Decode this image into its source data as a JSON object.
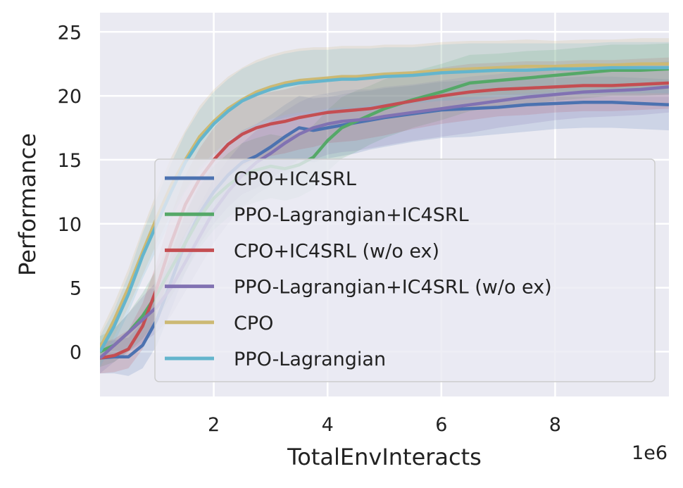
{
  "chart_data": {
    "type": "line",
    "title": "",
    "xlabel": "TotalEnvInteracts",
    "ylabel": "Performance",
    "x_scale_label": "1e6",
    "xlim": [
      0.0,
      10.0
    ],
    "ylim": [
      -3.5,
      26.5
    ],
    "xticks": [
      2,
      4,
      6,
      8
    ],
    "xtick_labels": [
      "2",
      "4",
      "6",
      "8"
    ],
    "yticks": [
      0,
      5,
      10,
      15,
      20,
      25
    ],
    "ytick_labels": [
      "0",
      "5",
      "10",
      "15",
      "20",
      "25"
    ],
    "grid": true,
    "legend_position": "center-right",
    "x": [
      0.0,
      0.25,
      0.5,
      0.75,
      1.0,
      1.25,
      1.5,
      1.75,
      2.0,
      2.25,
      2.5,
      2.75,
      3.0,
      3.25,
      3.5,
      3.75,
      4.0,
      4.25,
      4.5,
      4.75,
      5.0,
      5.5,
      6.0,
      6.5,
      7.0,
      7.5,
      8.0,
      8.5,
      9.0,
      9.5,
      10.0
    ],
    "series": [
      {
        "name": "CPO+IC4SRL",
        "color": "#4c72b0",
        "values": [
          -0.5,
          -0.4,
          -0.4,
          0.5,
          2.5,
          5.5,
          8.5,
          10.8,
          12.5,
          13.8,
          14.8,
          15.3,
          16.0,
          16.8,
          17.5,
          17.3,
          17.5,
          17.7,
          17.9,
          18.1,
          18.3,
          18.6,
          18.9,
          19.0,
          19.1,
          19.3,
          19.4,
          19.5,
          19.5,
          19.4,
          19.3
        ],
        "band": [
          1.2,
          1.3,
          1.5,
          1.8,
          2.0,
          2.2,
          2.3,
          2.4,
          2.5,
          2.5,
          2.5,
          2.5,
          2.5,
          2.5,
          2.5,
          2.5,
          2.4,
          2.4,
          2.4,
          2.3,
          2.3,
          2.2,
          2.2,
          2.2,
          2.1,
          2.1,
          2.0,
          2.0,
          2.0,
          2.0,
          2.0
        ]
      },
      {
        "name": "PPO-Lagrangian+IC4SRL",
        "color": "#55a868",
        "values": [
          0.0,
          0.5,
          1.5,
          2.8,
          4.5,
          6.5,
          8.5,
          10.5,
          12.0,
          13.0,
          13.8,
          14.2,
          14.5,
          14.3,
          14.6,
          15.2,
          16.5,
          17.5,
          18.0,
          18.5,
          19.0,
          19.7,
          20.3,
          21.0,
          21.2,
          21.4,
          21.6,
          21.8,
          22.0,
          22.0,
          22.1
        ],
        "band": [
          1.2,
          1.3,
          1.5,
          1.8,
          2.0,
          2.2,
          2.3,
          2.4,
          2.5,
          2.5,
          2.5,
          2.5,
          2.5,
          2.5,
          2.5,
          2.5,
          2.4,
          2.4,
          2.4,
          2.3,
          2.3,
          2.2,
          2.2,
          2.2,
          2.1,
          2.1,
          2.0,
          2.0,
          2.0,
          2.0,
          2.0
        ]
      },
      {
        "name": "CPO+IC4SRL (w/o ex)",
        "color": "#c44e52",
        "values": [
          -0.5,
          -0.3,
          0.2,
          2.0,
          5.0,
          8.5,
          11.5,
          13.5,
          15.0,
          16.2,
          17.0,
          17.5,
          17.8,
          18.0,
          18.3,
          18.5,
          18.7,
          18.8,
          18.9,
          19.0,
          19.2,
          19.6,
          20.0,
          20.3,
          20.5,
          20.6,
          20.7,
          20.8,
          20.8,
          20.9,
          21.0
        ],
        "band": [
          1.2,
          1.3,
          1.5,
          1.8,
          2.0,
          2.2,
          2.3,
          2.4,
          2.5,
          2.5,
          2.5,
          2.5,
          2.5,
          2.5,
          2.5,
          2.5,
          2.4,
          2.4,
          2.4,
          2.3,
          2.3,
          2.2,
          2.2,
          2.2,
          2.1,
          2.1,
          2.0,
          2.0,
          2.0,
          2.0,
          2.0
        ]
      },
      {
        "name": "PPO-Lagrangian+IC4SRL (w/o ex)",
        "color": "#8172b2",
        "values": [
          -0.5,
          0.5,
          1.5,
          2.5,
          3.5,
          5.0,
          7.0,
          9.0,
          11.0,
          12.5,
          13.8,
          14.8,
          15.5,
          16.3,
          17.0,
          17.5,
          17.8,
          18.0,
          18.1,
          18.2,
          18.4,
          18.7,
          19.0,
          19.3,
          19.6,
          19.9,
          20.1,
          20.3,
          20.4,
          20.5,
          20.7
        ],
        "band": [
          1.2,
          1.3,
          1.5,
          1.8,
          2.0,
          2.2,
          2.3,
          2.4,
          2.5,
          2.5,
          2.5,
          2.5,
          2.5,
          2.5,
          2.5,
          2.5,
          2.4,
          2.4,
          2.4,
          2.3,
          2.3,
          2.2,
          2.2,
          2.2,
          2.1,
          2.1,
          2.0,
          2.0,
          2.0,
          2.0,
          2.0
        ]
      },
      {
        "name": "CPO",
        "color": "#ccb974",
        "values": [
          0.3,
          2.5,
          5.0,
          7.8,
          10.5,
          13.0,
          15.0,
          16.8,
          18.0,
          19.0,
          19.7,
          20.3,
          20.7,
          21.0,
          21.2,
          21.3,
          21.4,
          21.5,
          21.5,
          21.6,
          21.7,
          21.8,
          22.0,
          22.1,
          22.2,
          22.3,
          22.3,
          22.4,
          22.4,
          22.5,
          22.5
        ],
        "band": [
          1.2,
          1.3,
          1.5,
          1.8,
          2.0,
          2.2,
          2.3,
          2.4,
          2.5,
          2.5,
          2.5,
          2.5,
          2.5,
          2.5,
          2.5,
          2.5,
          2.4,
          2.4,
          2.4,
          2.3,
          2.3,
          2.2,
          2.2,
          2.2,
          2.1,
          2.1,
          2.0,
          2.0,
          2.0,
          2.0,
          2.0
        ]
      },
      {
        "name": "PPO-Lagrangian",
        "color": "#64b5cd",
        "values": [
          0.0,
          2.0,
          4.5,
          7.5,
          10.0,
          12.5,
          14.8,
          16.5,
          17.8,
          18.8,
          19.6,
          20.1,
          20.5,
          20.8,
          21.0,
          21.1,
          21.2,
          21.3,
          21.3,
          21.4,
          21.5,
          21.6,
          21.8,
          21.9,
          22.0,
          22.0,
          22.1,
          22.1,
          22.2,
          22.2,
          22.2
        ],
        "band": [
          1.2,
          1.3,
          1.5,
          1.8,
          2.0,
          2.2,
          2.3,
          2.4,
          2.5,
          2.5,
          2.5,
          2.5,
          2.5,
          2.5,
          2.5,
          2.5,
          2.4,
          2.4,
          2.4,
          2.3,
          2.3,
          2.2,
          2.2,
          2.2,
          2.1,
          2.1,
          2.0,
          2.0,
          2.0,
          2.0,
          2.0
        ]
      }
    ]
  },
  "colors": {
    "plot_background": "#eaeaf2",
    "grid": "#ffffff",
    "legend_background": "#eaeaf2",
    "legend_border": "#cccccc",
    "text": "#222222"
  }
}
